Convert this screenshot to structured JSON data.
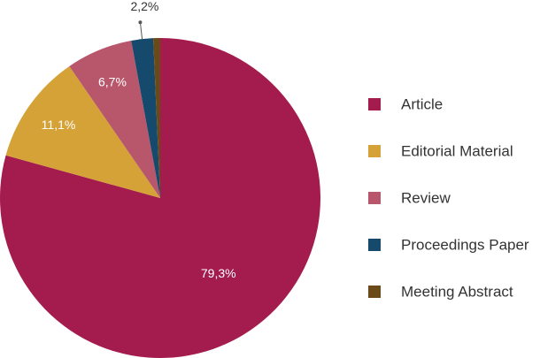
{
  "chart_data": {
    "type": "pie",
    "categories": [
      "Article",
      "Editorial Material",
      "Review",
      "Proceedings Paper",
      "Meeting Abstract"
    ],
    "values": [
      79.3,
      11.1,
      6.7,
      2.2,
      0.7
    ],
    "value_labels": [
      "79,3%",
      "11,1%",
      "6,7%",
      "2,2%",
      null
    ],
    "colors": [
      "#a31c4d",
      "#d4a237",
      "#b8566b",
      "#154a6c",
      "#6b4a1a"
    ],
    "legend": "right"
  }
}
